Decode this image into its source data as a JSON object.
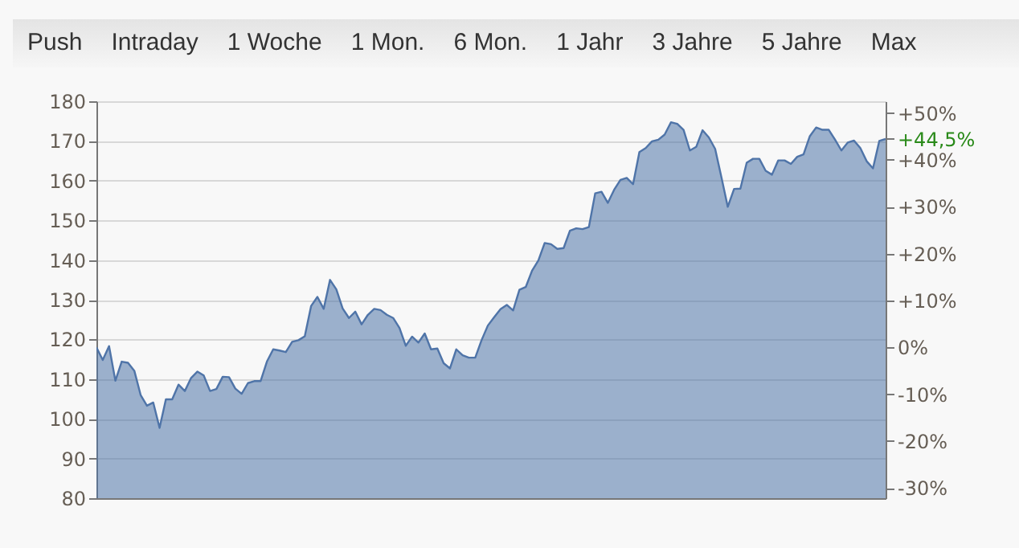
{
  "chart_data": {
    "type": "area",
    "grid": "y",
    "categories": [
      null,
      null,
      null,
      null,
      null,
      null,
      null,
      null,
      null,
      null,
      null,
      null,
      null,
      null,
      null,
      null,
      null,
      null,
      null,
      null,
      null,
      null,
      null,
      null,
      null,
      null,
      null,
      null,
      null,
      null,
      null,
      null,
      null,
      null,
      null,
      null,
      null,
      null,
      null,
      null,
      null,
      null,
      null,
      null,
      null,
      null,
      null,
      null,
      null,
      null,
      null,
      null,
      null,
      null,
      null,
      null,
      null,
      null,
      null,
      null,
      null,
      null,
      null,
      null,
      null,
      null,
      null,
      null,
      null,
      null,
      null,
      null,
      null,
      null,
      null,
      null,
      null,
      null,
      null,
      null,
      null,
      null,
      null,
      null,
      null,
      null,
      null,
      null,
      null,
      null,
      null,
      null,
      null,
      null,
      null,
      null,
      null,
      null,
      null,
      null,
      null,
      null,
      null,
      null,
      null,
      null,
      null,
      null,
      null,
      null,
      null,
      null,
      null,
      null,
      null,
      null,
      null,
      null,
      null,
      null,
      null,
      null,
      null,
      null,
      null,
      null
    ],
    "series": [
      {
        "color": "#4f74a8",
        "values": [
          118.0,
          114.8,
          118.3,
          109.6,
          114.4,
          114.1,
          112.1,
          106.0,
          103.3,
          104.1,
          97.7,
          104.9,
          104.9,
          108.6,
          107.0,
          110.3,
          111.9,
          110.9,
          107.0,
          107.5,
          110.6,
          110.5,
          107.6,
          106.3,
          109.0,
          109.5,
          109.5,
          114.4,
          117.5,
          117.2,
          116.8,
          119.4,
          119.8,
          120.8,
          128.4,
          130.7,
          127.7,
          135.0,
          132.6,
          127.8,
          125.4,
          127.0,
          123.8,
          126.2,
          127.7,
          127.4,
          126.2,
          125.4,
          122.9,
          118.4,
          120.7,
          119.2,
          121.5,
          117.5,
          117.7,
          114.0,
          112.7,
          117.5,
          116.0,
          115.4,
          115.4,
          119.8,
          123.5,
          125.6,
          127.6,
          128.7,
          127.3,
          132.5,
          133.2,
          137.3,
          139.9,
          144.3,
          144.0,
          142.8,
          143.0,
          147.4,
          148.0,
          147.8,
          148.3,
          156.8,
          157.2,
          154.4,
          157.7,
          160.2,
          160.7,
          159.1,
          167.2,
          168.2,
          169.9,
          170.3,
          171.6,
          174.7,
          174.3,
          172.8,
          167.6,
          168.5,
          172.7,
          170.9,
          168.0,
          160.8,
          153.4,
          157.9,
          158.0,
          164.5,
          165.5,
          165.5,
          162.5,
          161.5,
          165.1,
          165.1,
          164.2,
          166.0,
          166.6,
          171.2,
          173.4,
          172.8,
          172.8,
          170.3,
          167.6,
          169.6,
          170.1,
          168.2,
          164.9,
          163.1,
          170.0,
          170.5
        ]
      }
    ],
    "ylim": [
      80,
      180
    ],
    "yticks": [
      80,
      90,
      100,
      110,
      120,
      130,
      140,
      150,
      160,
      170,
      180
    ],
    "y2lim": [
      -32.2,
      52.5
    ],
    "y2ticks": [
      {
        "value": -30,
        "label": "-30%"
      },
      {
        "value": -20,
        "label": "-20%"
      },
      {
        "value": -10,
        "label": "-10%"
      },
      {
        "value": 0,
        "label": "0%"
      },
      {
        "value": 10,
        "label": "+10%"
      },
      {
        "value": 20,
        "label": "+20%"
      },
      {
        "value": 30,
        "label": "+30%"
      },
      {
        "value": 40,
        "label": "+40%"
      },
      {
        "value": 44.5,
        "label": "+44,5%"
      },
      {
        "value": 50,
        "label": "+50%"
      }
    ],
    "annotations": [
      "Push",
      "Intraday",
      "1 Woche",
      "1 Mon.",
      "6 Mon.",
      "1 Jahr",
      "3 Jahre",
      "5 Jahre",
      "Max"
    ]
  }
}
